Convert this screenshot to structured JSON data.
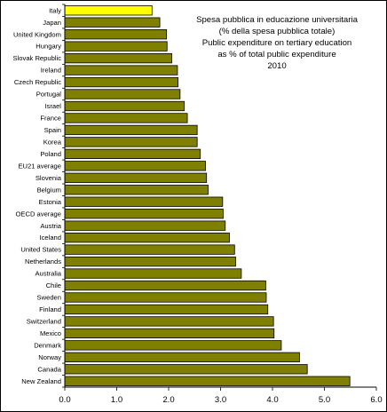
{
  "chart_data": {
    "type": "bar",
    "orientation": "horizontal",
    "title_lines": [
      "Spesa pubblica in educazione universitaria",
      "(% della spesa pubblica totale)",
      "Public expenditure on tertiary education",
      "as % of total public expenditure",
      "2010"
    ],
    "categories": [
      "Italy",
      "Japan",
      "United Kingdom",
      "Hungary",
      "Slovak Republic",
      "Ireland",
      "Czech Republic",
      "Portugal",
      "Israel",
      "France",
      "Spain",
      "Korea",
      "Poland",
      "EU21 average",
      "Slovenia",
      "Belgium",
      "Estonia",
      "OECD average",
      "Austria",
      "Iceland",
      "United States",
      "Netherlands",
      "Australia",
      "Chile",
      "Sweden",
      "Finland",
      "Switzerland",
      "Mexico",
      "Denmark",
      "Norway",
      "Canada",
      "New Zealand"
    ],
    "values": [
      1.68,
      1.83,
      1.96,
      1.97,
      2.06,
      2.17,
      2.18,
      2.22,
      2.3,
      2.36,
      2.55,
      2.55,
      2.61,
      2.71,
      2.73,
      2.76,
      3.04,
      3.05,
      3.09,
      3.17,
      3.27,
      3.29,
      3.4,
      3.87,
      3.88,
      3.91,
      4.02,
      4.03,
      4.17,
      4.52,
      4.67,
      5.49
    ],
    "highlight_color": "#ffff00",
    "bar_color": "#808000",
    "xlim": [
      0,
      6
    ],
    "xticks": [
      "0.0",
      "1.0",
      "2.0",
      "3.0",
      "4.0",
      "5.0",
      "6.0"
    ],
    "grid": false,
    "legend": "none"
  }
}
